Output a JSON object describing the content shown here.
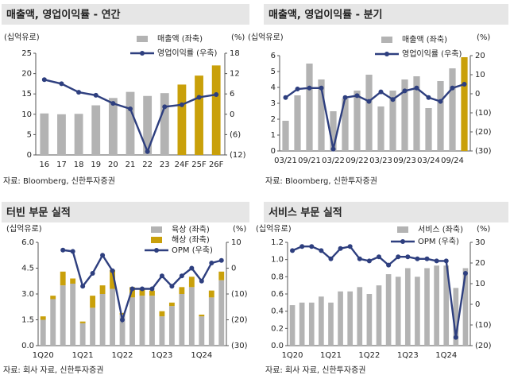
{
  "chart_data": [
    {
      "type": "combo",
      "title": "매출액, 영업이익률 - 연간",
      "y_label": "(십억유로)",
      "y2_label": "(%)",
      "source": "자료: Bloomberg, 신한투자증권",
      "legend": "upper right",
      "stacked": false,
      "categories": [
        "16",
        "17",
        "18",
        "19",
        "20",
        "21",
        "22",
        "23",
        "24F",
        "25F",
        "26F"
      ],
      "ylim": [
        0,
        25
      ],
      "yticks": [
        0,
        5,
        10,
        15,
        20,
        25
      ],
      "y2lim": [
        -12,
        18
      ],
      "y2ticks": [
        {
          "value": -12,
          "label": "(12)"
        },
        {
          "value": -6,
          "label": "(6)"
        },
        0,
        6,
        12,
        18
      ],
      "series": [
        {
          "name": "매출액 (좌축)",
          "type": "bar",
          "color": "#b3b3b3",
          "colors": [
            "#b3b3b3",
            "#b3b3b3",
            "#b3b3b3",
            "#b3b3b3",
            "#b3b3b3",
            "#b3b3b3",
            "#b3b3b3",
            "#b3b3b3",
            "#c9a00a",
            "#c9a00a",
            "#c9a00a"
          ],
          "values": [
            10.2,
            10.0,
            10.1,
            12.2,
            14.0,
            15.5,
            14.5,
            15.2,
            17.3,
            19.5,
            22.0
          ]
        },
        {
          "name": "영업이익률 (우축)",
          "type": "line",
          "axis": "y2",
          "color": "#2e3f7f",
          "values": [
            10.2,
            9.0,
            6.5,
            5.6,
            3.2,
            1.6,
            -11.0,
            2.2,
            2.8,
            5.0,
            5.8
          ]
        }
      ]
    },
    {
      "type": "combo",
      "title": "매출액, 영업이익률 - 분기",
      "y_label": "(십억유로)",
      "y2_label": "(%)",
      "source": "자료: Bloomberg, 신한투자증권",
      "legend": "upper right",
      "stacked": false,
      "categories": [
        "03/21",
        null,
        "09/21",
        null,
        "03/22",
        null,
        "09/22",
        null,
        "03/23",
        null,
        "09/23",
        null,
        "03/24",
        null,
        "09/24",
        null
      ],
      "ylim": [
        0,
        6
      ],
      "yticks": [
        0,
        1,
        2,
        3,
        4,
        5,
        6
      ],
      "y2lim": [
        -30,
        20
      ],
      "y2ticks": [
        {
          "value": -30,
          "label": "(30)"
        },
        {
          "value": -20,
          "label": "(20)"
        },
        {
          "value": -10,
          "label": "(10)"
        },
        0,
        10,
        20
      ],
      "series": [
        {
          "name": "매출액 (좌축)",
          "type": "bar",
          "color": "#b3b3b3",
          "colors": [
            "#b3b3b3",
            "#b3b3b3",
            "#b3b3b3",
            "#b3b3b3",
            "#b3b3b3",
            "#b3b3b3",
            "#b3b3b3",
            "#b3b3b3",
            "#b3b3b3",
            "#b3b3b3",
            "#b3b3b3",
            "#b3b3b3",
            "#b3b3b3",
            "#b3b3b3",
            "#b3b3b3",
            "#c9a00a"
          ],
          "values": [
            1.9,
            3.5,
            5.5,
            4.5,
            2.5,
            3.3,
            3.8,
            4.8,
            2.8,
            3.8,
            4.5,
            4.7,
            2.7,
            4.4,
            5.2,
            5.9
          ]
        },
        {
          "name": "영업이익률 (우축)",
          "type": "line",
          "axis": "y2",
          "color": "#2e3f7f",
          "values": [
            -2,
            2.5,
            3,
            3,
            -29,
            -2,
            -1,
            -4,
            1,
            -3,
            1.5,
            3,
            -2,
            -4,
            3,
            5
          ]
        }
      ]
    },
    {
      "type": "combo",
      "title": "터빈 부문 실적",
      "y_label": "(십억유로)",
      "y2_label": "(%)",
      "source": "자료: 회사 자료, 신한투자증권",
      "legend": "upper right",
      "stacked": true,
      "categories": [
        "1Q20",
        null,
        null,
        null,
        "1Q21",
        null,
        null,
        null,
        "1Q22",
        null,
        null,
        null,
        "1Q23",
        null,
        null,
        null,
        "1Q24",
        null,
        null
      ],
      "ylim": [
        0,
        6
      ],
      "yticks": [
        {
          "value": 0,
          "label": "0.0"
        },
        1.5,
        {
          "value": 3,
          "label": "3.0"
        },
        4.5,
        {
          "value": 6,
          "label": "6.0"
        }
      ],
      "y2lim": [
        -30,
        10
      ],
      "y2ticks": [
        {
          "value": -30,
          "label": "(30)"
        },
        {
          "value": -20,
          "label": "(20)"
        },
        {
          "value": -10,
          "label": "(10)"
        },
        0,
        10
      ],
      "series": [
        {
          "name": "육상 (좌축)",
          "type": "bar",
          "color": "#b3b3b3",
          "values": [
            1.5,
            2.7,
            3.5,
            3.6,
            1.3,
            2.2,
            3.0,
            3.3,
            1.8,
            2.8,
            2.9,
            2.9,
            1.7,
            2.3,
            3.0,
            3.4,
            1.7,
            2.8,
            3.8
          ]
        },
        {
          "name": "해상 (좌축)",
          "type": "bar",
          "color": "#c9a00a",
          "values": [
            0.2,
            0.2,
            0.8,
            0.3,
            0.1,
            0.7,
            0.5,
            1.1,
            0.1,
            0.6,
            0.4,
            0.3,
            0.3,
            0.2,
            0.4,
            0.6,
            0.1,
            0.4,
            0.5
          ]
        },
        {
          "name": "OPM (우축)",
          "type": "line",
          "axis": "y2",
          "color": "#2e3f7f",
          "values": [
            null,
            null,
            7,
            6.5,
            -7,
            -2,
            5,
            -1,
            -20,
            -8,
            -8,
            -8,
            -3,
            -7,
            -3,
            0,
            -5,
            2,
            3
          ]
        }
      ]
    },
    {
      "type": "combo",
      "title": "서비스 부문 실적",
      "y_label": "(십억유로)",
      "y2_label": "(%)",
      "source": "자료: 회사 자료, 신한투자증권",
      "legend": "upper right",
      "stacked": false,
      "categories": [
        "1Q20",
        null,
        null,
        null,
        "1Q21",
        null,
        null,
        null,
        "1Q22",
        null,
        null,
        null,
        "1Q23",
        null,
        null,
        null,
        "1Q24",
        null,
        null
      ],
      "ylim": [
        0,
        1.2
      ],
      "yticks": [
        {
          "value": 0,
          "label": "0.0"
        },
        0.2,
        0.4,
        0.6,
        0.8,
        {
          "value": 1,
          "label": "1.0"
        },
        1.2
      ],
      "y2lim": [
        -20,
        30
      ],
      "y2ticks": [
        {
          "value": -20,
          "label": "(20)"
        },
        {
          "value": -10,
          "label": "(10)"
        },
        0,
        10,
        20,
        30
      ],
      "series": [
        {
          "name": "서비스 (좌축)",
          "type": "bar",
          "color": "#b3b3b3",
          "values": [
            0.47,
            0.5,
            0.5,
            0.57,
            0.5,
            0.63,
            0.63,
            0.68,
            0.6,
            0.7,
            0.83,
            0.8,
            0.9,
            0.8,
            0.9,
            0.93,
            0.93,
            0.67,
            0.9
          ]
        },
        {
          "name": "OPM (우축)",
          "type": "line",
          "axis": "y2",
          "color": "#2e3f7f",
          "values": [
            26,
            28,
            28,
            26,
            22,
            27,
            28,
            22,
            21,
            23,
            19,
            23,
            23,
            22,
            22,
            21,
            21,
            -16,
            15
          ]
        }
      ]
    }
  ]
}
